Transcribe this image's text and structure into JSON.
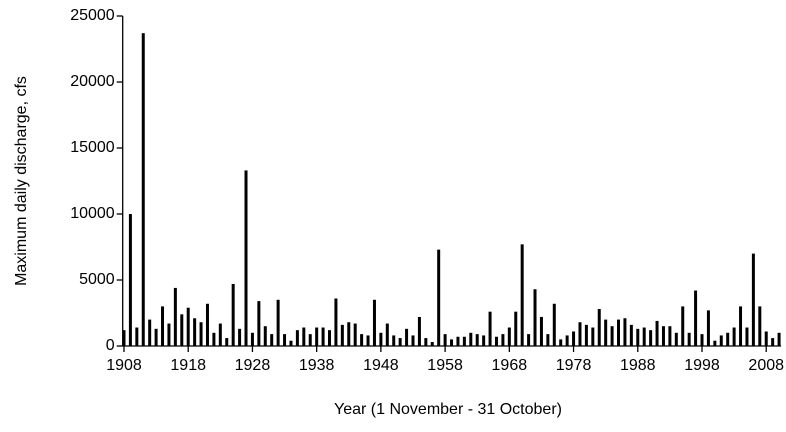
{
  "chart_data": {
    "type": "bar",
    "y_label": "Maximum daily discharge, cfs",
    "x_label": "Year (1 November - 31 October)",
    "color": "#000000",
    "x": [
      1908,
      1909,
      1910,
      1911,
      1912,
      1913,
      1914,
      1915,
      1916,
      1917,
      1918,
      1919,
      1920,
      1921,
      1922,
      1923,
      1924,
      1925,
      1926,
      1927,
      1928,
      1929,
      1930,
      1931,
      1932,
      1933,
      1934,
      1935,
      1936,
      1937,
      1938,
      1939,
      1940,
      1941,
      1942,
      1943,
      1944,
      1945,
      1946,
      1947,
      1948,
      1949,
      1950,
      1951,
      1952,
      1953,
      1954,
      1955,
      1956,
      1957,
      1958,
      1959,
      1960,
      1961,
      1962,
      1963,
      1964,
      1965,
      1966,
      1967,
      1968,
      1969,
      1970,
      1971,
      1972,
      1973,
      1974,
      1975,
      1976,
      1977,
      1978,
      1979,
      1980,
      1981,
      1982,
      1983,
      1984,
      1985,
      1986,
      1987,
      1988,
      1989,
      1990,
      1991,
      1992,
      1993,
      1994,
      1995,
      1996,
      1997,
      1998,
      1999,
      2000,
      2001,
      2002,
      2003,
      2004,
      2005,
      2006,
      2007,
      2008,
      2009,
      2010
    ],
    "values": [
      1200,
      10000,
      1400,
      23700,
      2000,
      1300,
      3000,
      1700,
      4400,
      2400,
      2900,
      2100,
      1800,
      3200,
      1000,
      1700,
      600,
      4700,
      1300,
      13300,
      1000,
      3400,
      1500,
      900,
      3500,
      900,
      400,
      1200,
      1400,
      900,
      1400,
      1400,
      1200,
      3600,
      1600,
      1800,
      1700,
      900,
      800,
      3500,
      1000,
      1700,
      800,
      600,
      1300,
      800,
      2200,
      600,
      300,
      7300,
      900,
      500,
      700,
      700,
      1000,
      900,
      800,
      2600,
      700,
      900,
      1400,
      2600,
      7700,
      900,
      4300,
      2200,
      900,
      3200,
      500,
      800,
      1100,
      1800,
      1600,
      1400,
      2800,
      2000,
      1500,
      2000,
      2100,
      1600,
      1300,
      1400,
      1200,
      1900,
      1500,
      1500,
      1000,
      3000,
      1000,
      4200,
      900,
      2700,
      400,
      800,
      1000,
      1400,
      3000,
      1400,
      7000,
      3000,
      1100,
      600,
      1000
    ],
    "xlim": [
      1907.8,
      2010.3
    ],
    "xticks": [
      1908,
      1918,
      1928,
      1938,
      1948,
      1958,
      1968,
      1978,
      1988,
      1998,
      2008
    ],
    "ylim": [
      0,
      25000
    ],
    "yticks": [
      0,
      5000,
      10000,
      15000,
      20000,
      25000
    ]
  }
}
